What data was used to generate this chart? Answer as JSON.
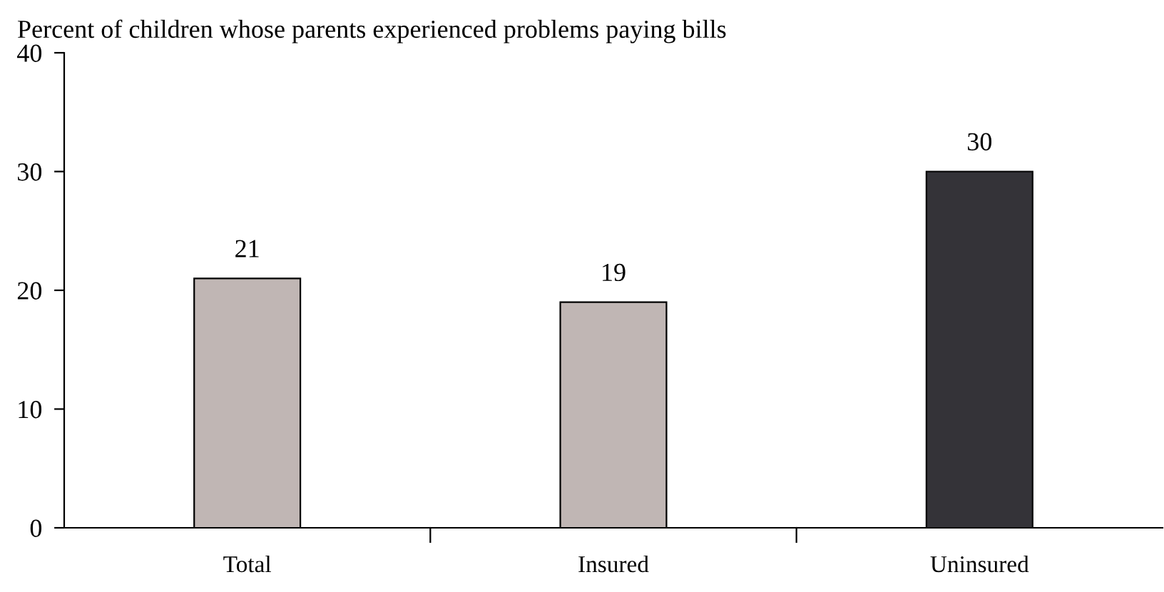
{
  "chart_data": {
    "type": "bar",
    "title": "Percent of children whose parents experienced problems paying bills",
    "categories": [
      "Total",
      "Insured",
      "Uninsured"
    ],
    "values": [
      21,
      19,
      30
    ],
    "colors": [
      "#c0b6b4",
      "#c0b6b4",
      "#343338"
    ],
    "ylim": [
      0,
      40
    ],
    "yticks": [
      0,
      10,
      20,
      30,
      40
    ],
    "grid": false,
    "legend": false,
    "data_labels": true
  }
}
